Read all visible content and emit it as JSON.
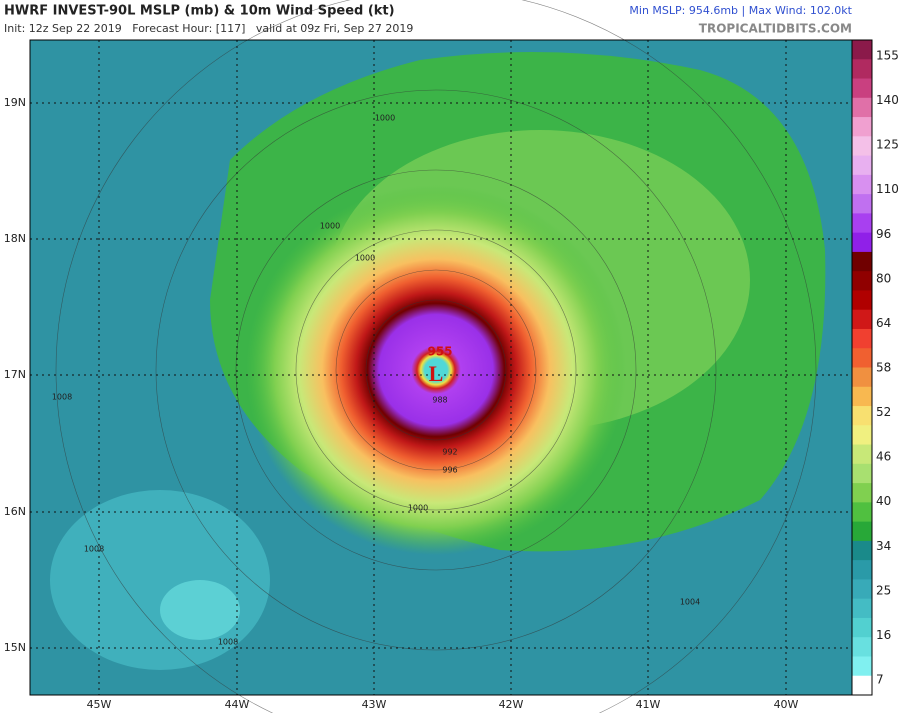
{
  "header": {
    "title": "HWRF INVEST-90L MSLP (mb) & 10m Wind Speed (kt)",
    "subtitle": "Init: 12z Sep 22 2019   Forecast Hour: [117]   valid at 09z Fri, Sep 27 2019",
    "stats": "Min MSLP: 954.6mb | Max Wind: 102.0kt",
    "source": "TROPICALTIDBITS.COM"
  },
  "map": {
    "lat_labels": [
      "19N",
      "18N",
      "17N",
      "16N",
      "15N"
    ],
    "lon_labels": [
      "45W",
      "44W",
      "43W",
      "42W",
      "41W",
      "40W"
    ],
    "center_label": "L",
    "center_pressure": "955",
    "contour_labels": [
      "1000",
      "1000",
      "1000",
      "996",
      "992",
      "988",
      "1008",
      "1008",
      "1008",
      "1004",
      "1000"
    ],
    "colorbar_labels": [
      "155",
      "140",
      "125",
      "110",
      "96",
      "80",
      "64",
      "58",
      "52",
      "46",
      "40",
      "34",
      "25",
      "16",
      "7"
    ]
  }
}
